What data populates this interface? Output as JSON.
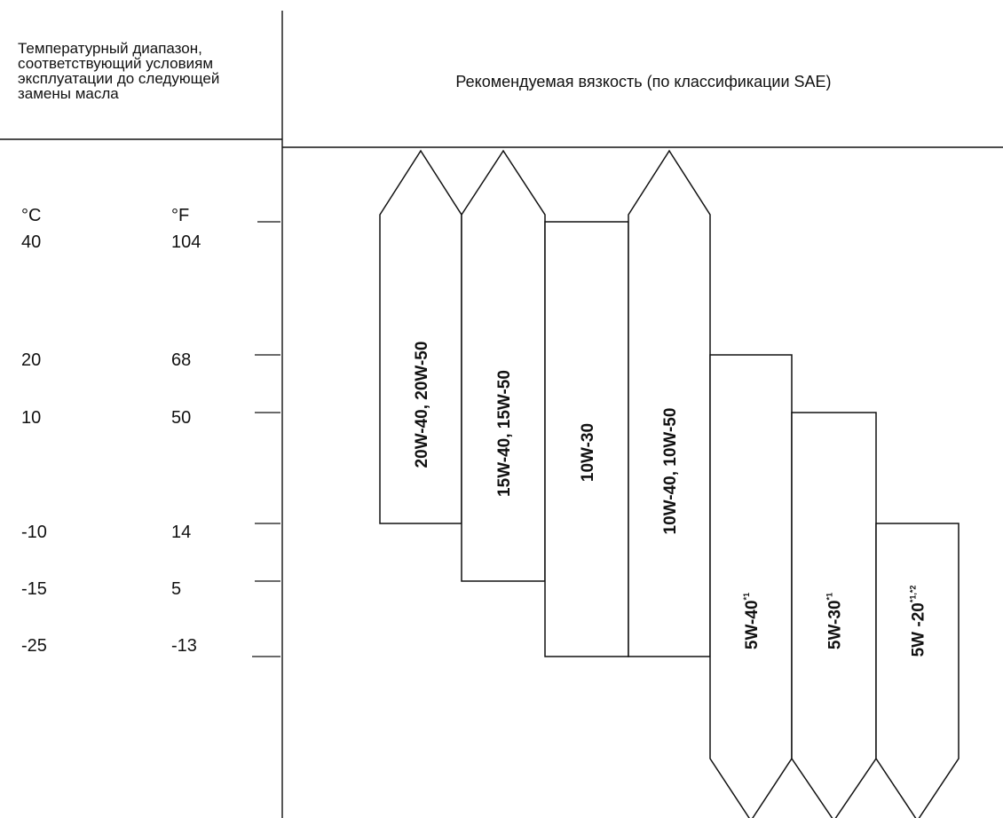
{
  "header": {
    "left_lines": [
      "Температурный диапазон,",
      "соответствующий условиям",
      "эксплуатации до следующей",
      "замены масла"
    ],
    "right_title": "Рекомендуемая вязкость (по классификации SAE)"
  },
  "units": {
    "celsius": "°C",
    "fahrenheit": "°F"
  },
  "temperature_rows": [
    {
      "c": "40",
      "f": "104"
    },
    {
      "c": "20",
      "f": "68"
    },
    {
      "c": "10",
      "f": "50"
    },
    {
      "c": "-10",
      "f": "14"
    },
    {
      "c": "-15",
      "f": "5"
    },
    {
      "c": "-25",
      "f": "-13"
    }
  ],
  "oils": [
    {
      "label": "20W-40, 20W-50",
      "sup": "",
      "min_c": -10,
      "max_c": null,
      "open_top": true,
      "open_bottom": false
    },
    {
      "label": "15W-40, 15W-50",
      "sup": "",
      "min_c": -15,
      "max_c": null,
      "open_top": true,
      "open_bottom": false
    },
    {
      "label": "10W-30",
      "sup": "",
      "min_c": -25,
      "max_c": 40,
      "open_top": false,
      "open_bottom": false
    },
    {
      "label": "10W-40, 10W-50",
      "sup": "",
      "min_c": -25,
      "max_c": null,
      "open_top": true,
      "open_bottom": false
    },
    {
      "label": "5W-40",
      "sup": "*1",
      "min_c": null,
      "max_c": 20,
      "open_top": false,
      "open_bottom": true
    },
    {
      "label": "5W-30",
      "sup": "*1",
      "min_c": null,
      "max_c": 10,
      "open_top": false,
      "open_bottom": true
    },
    {
      "label": "5W -20",
      "sup": "*1,*2",
      "min_c": null,
      "max_c": -10,
      "open_top": false,
      "open_bottom": true
    }
  ]
}
